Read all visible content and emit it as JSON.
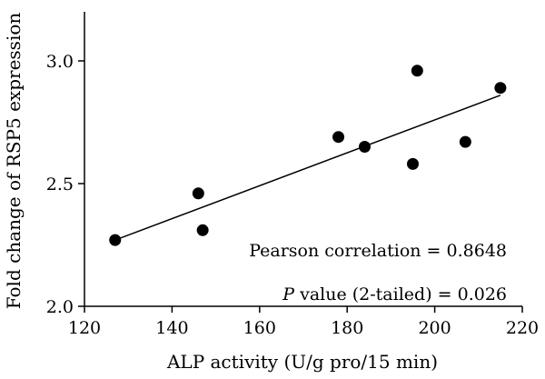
{
  "chart_data": {
    "type": "scatter",
    "xlabel": "ALP activity (U/g pro/15 min)",
    "ylabel": "Fold change of RSP5 expression",
    "xlim": [
      120,
      220
    ],
    "ylim": [
      2.0,
      3.2
    ],
    "x_ticks": [
      120,
      140,
      160,
      180,
      200,
      220
    ],
    "x_tick_labels": [
      "120",
      "140",
      "160",
      "180",
      "200",
      "220"
    ],
    "y_ticks": [
      2.0,
      2.5,
      3.0
    ],
    "y_tick_labels": [
      "2.0",
      "2.5",
      "3.0"
    ],
    "grid": false,
    "points": [
      {
        "x": 127,
        "y": 2.27
      },
      {
        "x": 146,
        "y": 2.46
      },
      {
        "x": 147,
        "y": 2.31
      },
      {
        "x": 178,
        "y": 2.69
      },
      {
        "x": 184,
        "y": 2.65
      },
      {
        "x": 195,
        "y": 2.58
      },
      {
        "x": 196,
        "y": 2.96
      },
      {
        "x": 207,
        "y": 2.67
      },
      {
        "x": 215,
        "y": 2.89
      }
    ],
    "trendline": {
      "x": [
        127,
        215
      ],
      "y": [
        2.27,
        2.86
      ]
    },
    "annotations": {
      "pearson": "Pearson correlation = 0.8648",
      "p_italic": "P",
      "p_rest": " value (2-tailed) = 0.026"
    }
  }
}
